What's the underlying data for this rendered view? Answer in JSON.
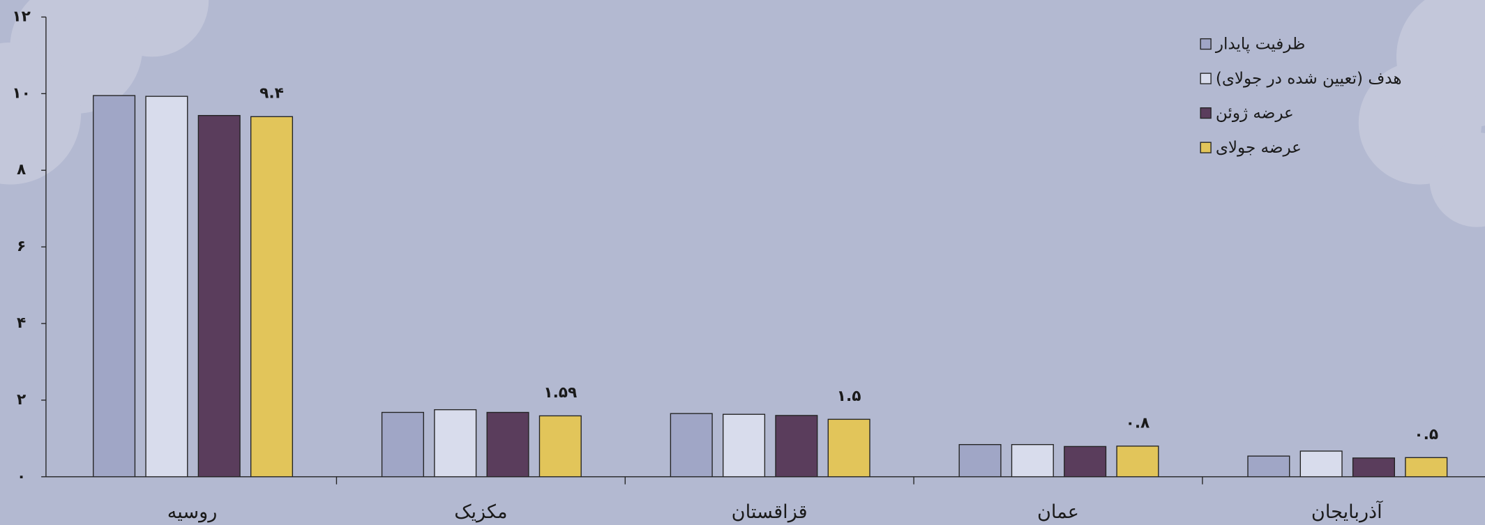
{
  "chart_data": {
    "type": "bar",
    "categories": [
      "روسیه",
      "مکزیک",
      "قزاقستان",
      "عمان",
      "آذربایجان"
    ],
    "series": [
      {
        "name": "ظرفیت پایدار",
        "color": "#a0a6c6",
        "values": [
          9.95,
          1.68,
          1.65,
          0.84,
          0.54
        ]
      },
      {
        "name": "هدف (تعیین شده در جولای)",
        "color": "#d8dcec",
        "values": [
          9.93,
          1.75,
          1.63,
          0.84,
          0.67
        ]
      },
      {
        "name": "عرضه ژوئن",
        "color": "#5a3d5c",
        "values": [
          9.43,
          1.68,
          1.6,
          0.79,
          0.49
        ]
      },
      {
        "name": "عرضه جولای",
        "color": "#e2c55a",
        "values": [
          9.4,
          1.59,
          1.5,
          0.8,
          0.5
        ],
        "value_labels": [
          "۹.۴",
          "۱.۵۹",
          "۱.۵",
          "۰.۸",
          "۰.۵"
        ]
      }
    ],
    "ylim": [
      0,
      12
    ],
    "yticks": [
      {
        "value": 0,
        "label": "۰"
      },
      {
        "value": 2,
        "label": "۲"
      },
      {
        "value": 4,
        "label": "۴"
      },
      {
        "value": 6,
        "label": "۶"
      },
      {
        "value": 8,
        "label": "۸"
      },
      {
        "value": 10,
        "label": "۱۰"
      },
      {
        "value": 12,
        "label": "۱۲"
      }
    ],
    "legend": "top-right"
  }
}
